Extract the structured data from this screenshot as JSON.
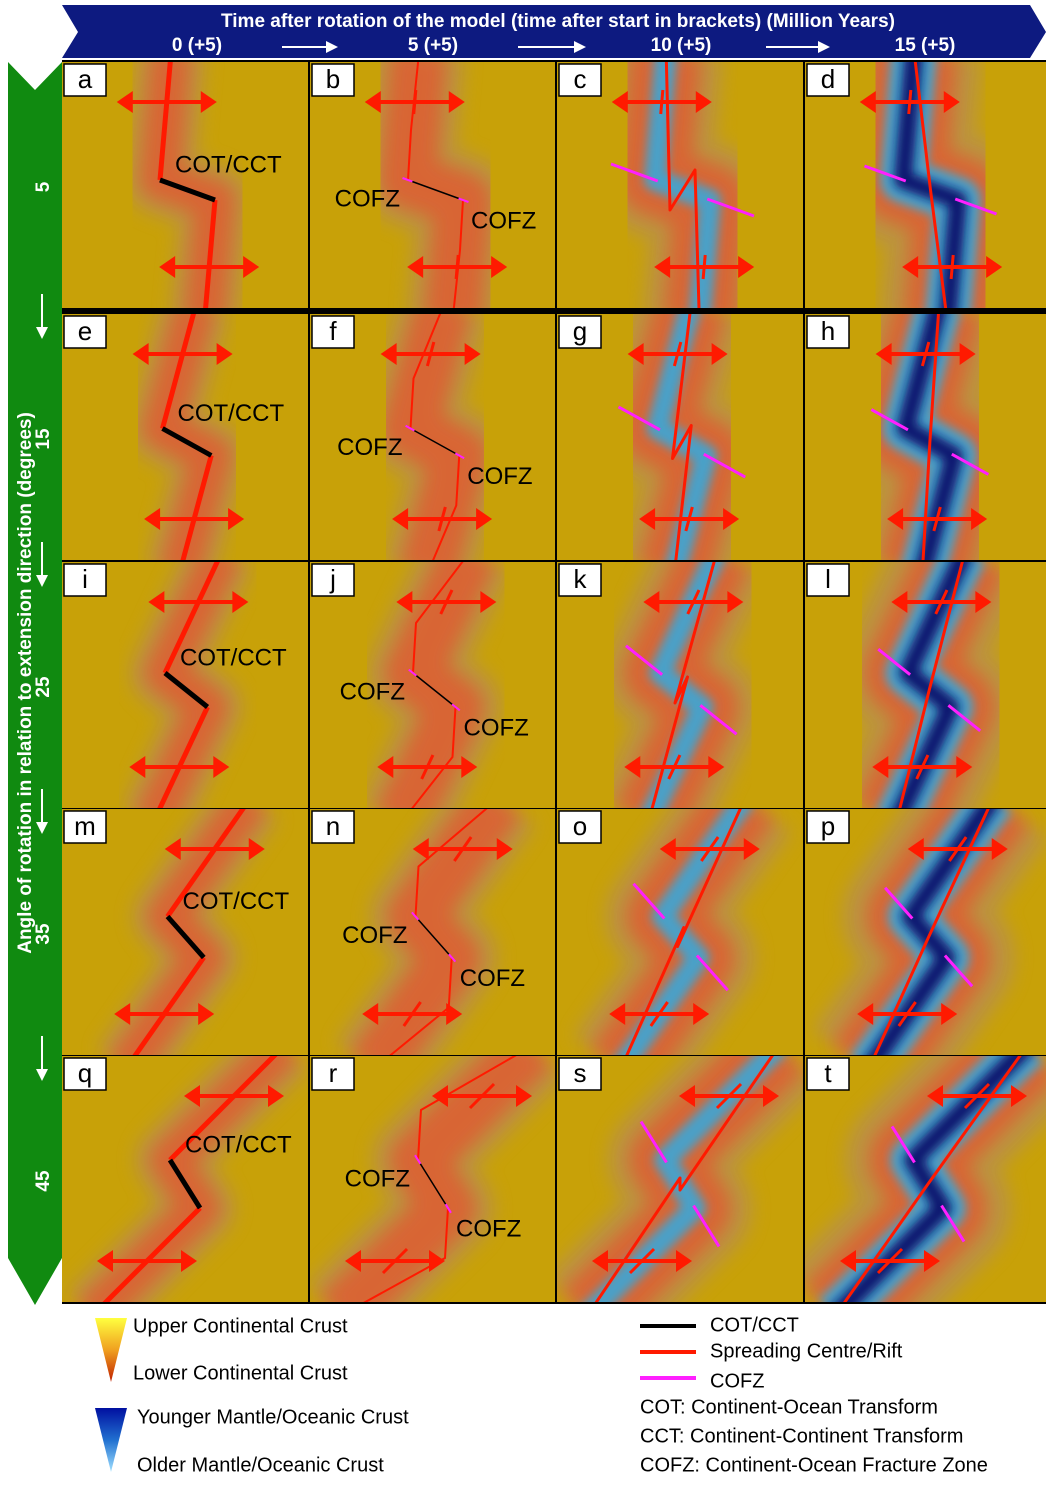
{
  "header": {
    "title": "Time after rotation of the model (time after start in brackets) (Million Years)",
    "columns": [
      "0 (+5)",
      "5 (+5)",
      "10 (+5)",
      "15 (+5)"
    ]
  },
  "side": {
    "title": "Angle of rotation in relation to extension direction (degrees)",
    "rows": [
      "5",
      "15",
      "25",
      "35",
      "45"
    ]
  },
  "panels": [
    {
      "letter": "a",
      "labels": [
        "COT/CCT"
      ]
    },
    {
      "letter": "b",
      "labels": [
        "COFZ",
        "COFZ"
      ]
    },
    {
      "letter": "c",
      "labels": []
    },
    {
      "letter": "d",
      "labels": []
    },
    {
      "letter": "e",
      "labels": [
        "COT/CCT"
      ]
    },
    {
      "letter": "f",
      "labels": [
        "COFZ",
        "COFZ"
      ]
    },
    {
      "letter": "g",
      "labels": []
    },
    {
      "letter": "h",
      "labels": []
    },
    {
      "letter": "i",
      "labels": [
        "COT/CCT"
      ]
    },
    {
      "letter": "j",
      "labels": [
        "COFZ",
        "COFZ"
      ]
    },
    {
      "letter": "k",
      "labels": []
    },
    {
      "letter": "l",
      "labels": []
    },
    {
      "letter": "m",
      "labels": [
        "COT/CCT"
      ]
    },
    {
      "letter": "n",
      "labels": [
        "COFZ",
        "COFZ"
      ]
    },
    {
      "letter": "o",
      "labels": []
    },
    {
      "letter": "p",
      "labels": []
    },
    {
      "letter": "q",
      "labels": [
        "COT/CCT"
      ]
    },
    {
      "letter": "r",
      "labels": [
        "COFZ",
        "COFZ"
      ]
    },
    {
      "letter": "s",
      "labels": []
    },
    {
      "letter": "t",
      "labels": []
    }
  ],
  "legend": {
    "crust": [
      "Upper Continental Crust",
      "Lower Continental Crust",
      "Younger Mantle/Oceanic Crust",
      "Older Mantle/Oceanic Crust"
    ],
    "lines": [
      "COT/CCT",
      "Spreading Centre/Rift",
      "COFZ"
    ],
    "abbreviations": [
      "COT: Continent-Ocean Transform",
      "CCT: Continent-Continent Transform",
      "COFZ: Continent-Ocean Fracture Zone"
    ]
  }
}
